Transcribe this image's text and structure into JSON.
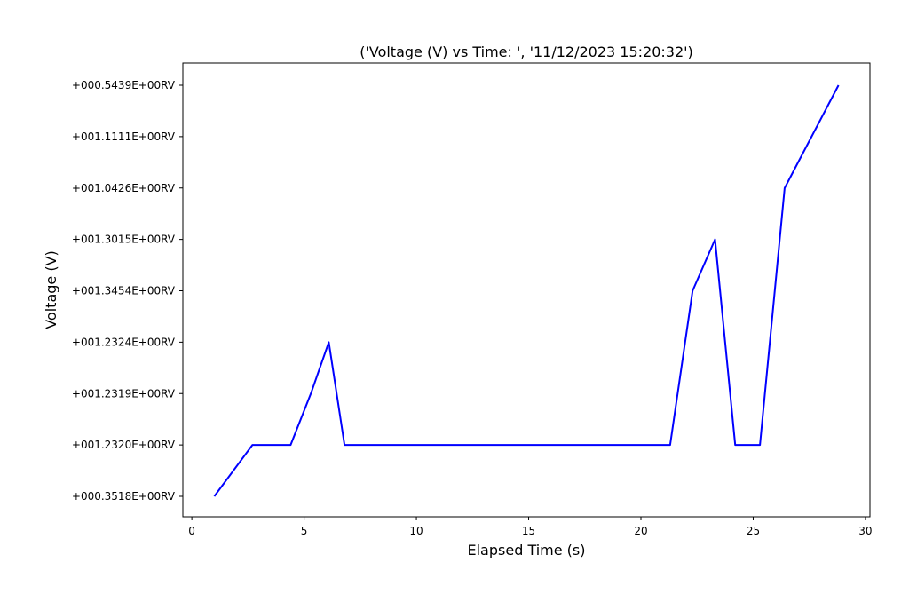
{
  "chart_data": {
    "type": "line",
    "title": "('Voltage (V) vs Time: ', '11/12/2023 15:20:32')",
    "xlabel": "Elapsed Time (s)",
    "ylabel": "Voltage (V)",
    "xlim": [
      -0.4,
      30.2
    ],
    "x_ticks": [
      0,
      5,
      10,
      15,
      20,
      25,
      30
    ],
    "y_categories": [
      "+000.3518E+00RV",
      "+001.2320E+00RV",
      "+001.2319E+00RV",
      "+001.2324E+00RV",
      "+001.3454E+00RV",
      "+001.3015E+00RV",
      "+001.0426E+00RV",
      "+001.1111E+00RV",
      "+000.5439E+00RV"
    ],
    "series": [
      {
        "color": "#0000ff",
        "points": [
          {
            "x": 1.0,
            "y": "+000.3518E+00RV"
          },
          {
            "x": 2.7,
            "y": "+001.2320E+00RV"
          },
          {
            "x": 4.4,
            "y": "+001.2320E+00RV"
          },
          {
            "x": 5.3,
            "y": "+001.2319E+00RV"
          },
          {
            "x": 6.1,
            "y": "+001.2324E+00RV"
          },
          {
            "x": 6.8,
            "y": "+001.2320E+00RV"
          },
          {
            "x": 21.3,
            "y": "+001.2320E+00RV"
          },
          {
            "x": 22.3,
            "y": "+001.3454E+00RV"
          },
          {
            "x": 23.3,
            "y": "+001.3015E+00RV"
          },
          {
            "x": 24.2,
            "y": "+001.2320E+00RV"
          },
          {
            "x": 25.3,
            "y": "+001.2320E+00RV"
          },
          {
            "x": 26.4,
            "y": "+001.0426E+00RV"
          },
          {
            "x": 28.8,
            "y": "+000.5439E+00RV"
          }
        ]
      }
    ],
    "grid": false,
    "legend": "none"
  }
}
